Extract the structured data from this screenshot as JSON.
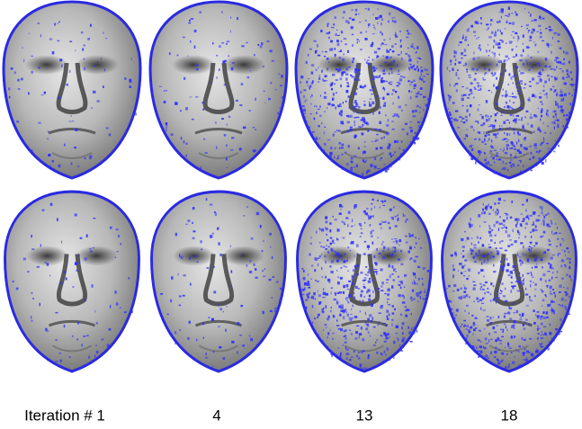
{
  "labels": [
    "Iteration # 1",
    "4",
    "13",
    "18"
  ]
}
